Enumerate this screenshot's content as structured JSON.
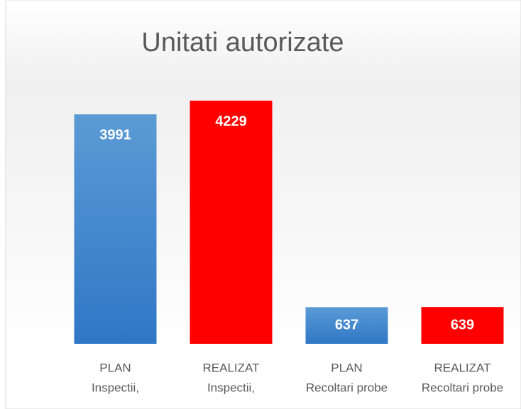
{
  "chart_data": {
    "type": "bar",
    "title": "Unitati autorizate",
    "categories": [
      [
        "PLAN",
        "Inspectii,"
      ],
      [
        "REALIZAT",
        "Inspectii,"
      ],
      [
        "PLAN",
        "Recoltari probe"
      ],
      [
        "REALIZAT",
        "Recoltari probe"
      ]
    ],
    "values": [
      3991,
      4229,
      637,
      639
    ],
    "colors": [
      "#4a8ad2",
      "#ff0000",
      "#4a8ad2",
      "#ff0000"
    ]
  }
}
